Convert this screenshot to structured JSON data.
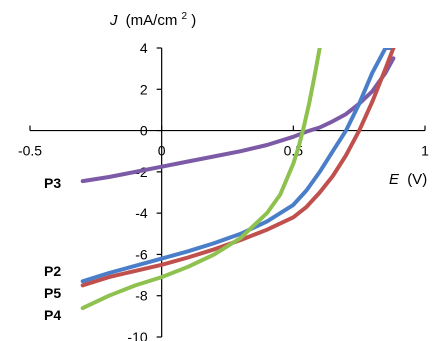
{
  "chart_data": {
    "type": "line",
    "xlabel_var": "E",
    "xlabel_unit": "(V)",
    "ylabel_var": "J",
    "ylabel_unit_prefix": "(mA/cm",
    "ylabel_unit_sup": "2",
    "ylabel_unit_suffix": ")",
    "xlim": [
      -0.5,
      1
    ],
    "ylim": [
      -10,
      4
    ],
    "x_ticks": [
      -0.5,
      0,
      0.5,
      1
    ],
    "x_tick_labels": [
      "-0.5",
      "0",
      "0.5",
      "1"
    ],
    "y_ticks": [
      -10,
      -8,
      -6,
      -4,
      -2,
      0,
      2,
      4
    ],
    "y_tick_labels": [
      "-10",
      "-8",
      "-6",
      "-4",
      "-2",
      "0",
      "2",
      "4"
    ],
    "grid": false,
    "series": [
      {
        "name": "P3",
        "color": "#7d5aa6",
        "x": [
          -0.3,
          -0.2,
          -0.1,
          0,
          0.1,
          0.2,
          0.3,
          0.4,
          0.5,
          0.55,
          0.6,
          0.65,
          0.7,
          0.75,
          0.8,
          0.85,
          0.88
        ],
        "y": [
          -2.45,
          -2.25,
          -2.0,
          -1.75,
          -1.5,
          -1.25,
          -1.0,
          -0.7,
          -0.3,
          -0.05,
          0.15,
          0.45,
          0.8,
          1.3,
          1.9,
          2.8,
          3.5
        ]
      },
      {
        "name": "P2",
        "color": "#4a7ec9",
        "x": [
          -0.3,
          -0.2,
          -0.1,
          0,
          0.1,
          0.2,
          0.3,
          0.4,
          0.5,
          0.55,
          0.6,
          0.65,
          0.7,
          0.75,
          0.8,
          0.85,
          0.88
        ],
        "y": [
          -7.3,
          -6.9,
          -6.55,
          -6.2,
          -5.85,
          -5.45,
          -5.0,
          -4.4,
          -3.6,
          -2.9,
          -2.0,
          -1.0,
          0.0,
          1.3,
          2.8,
          4.0,
          4.0
        ]
      },
      {
        "name": "P5",
        "color": "#c0504d",
        "x": [
          -0.3,
          -0.2,
          -0.1,
          0,
          0.1,
          0.2,
          0.3,
          0.4,
          0.5,
          0.55,
          0.6,
          0.65,
          0.7,
          0.75,
          0.8,
          0.85,
          0.88
        ],
        "y": [
          -7.5,
          -7.1,
          -6.8,
          -6.5,
          -6.15,
          -5.75,
          -5.3,
          -4.8,
          -4.2,
          -3.7,
          -3.0,
          -2.2,
          -1.2,
          0.0,
          1.4,
          3.0,
          4.0
        ]
      },
      {
        "name": "P4",
        "color": "#8fc14f",
        "x": [
          -0.3,
          -0.2,
          -0.1,
          0,
          0.1,
          0.2,
          0.3,
          0.4,
          0.45,
          0.5,
          0.52,
          0.54,
          0.56,
          0.58,
          0.6
        ],
        "y": [
          -8.6,
          -8.0,
          -7.5,
          -7.1,
          -6.6,
          -6.0,
          -5.2,
          -4.0,
          -3.1,
          -1.6,
          -0.8,
          0.2,
          1.3,
          2.6,
          4.0
        ]
      }
    ]
  }
}
